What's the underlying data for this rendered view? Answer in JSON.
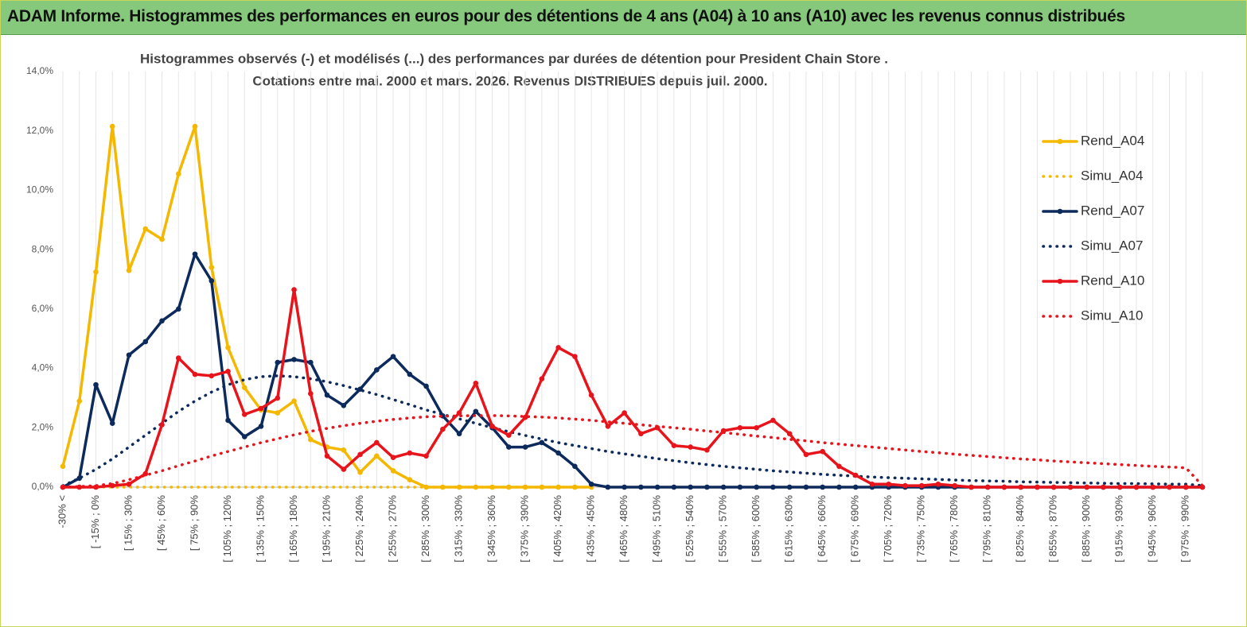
{
  "header": {
    "title": "ADAM Informe. Histogrammes des performances en euros pour des détentions de 4 ans (A04) à 10 ans (A10) avec les revenus connus distribués"
  },
  "chart_data": {
    "type": "line",
    "subtitle": [
      "Histogrammes observés (-) et modélisés (...) des performances par durées de détention pour President Chain Store .",
      "Cotations entre mai. 2000 et mars. 2026. Revenus DISTRIBUES depuis juil. 2000."
    ],
    "categories": [
      "-30% <",
      null,
      "[ -15% ; 0%",
      null,
      "[ 15% ; 30%",
      null,
      "[ 45% ; 60%",
      null,
      "[ 75% ; 90%",
      null,
      "[ 105% ; 120%",
      null,
      "[ 135% ; 150%",
      null,
      "[ 165% ; 180%",
      null,
      "[ 195% ; 210%",
      null,
      "[ 225% ; 240%",
      null,
      "[ 255% ; 270%",
      null,
      "[ 285% ; 300%",
      null,
      "[ 315% ; 330%",
      null,
      "[ 345% ; 360%",
      null,
      "[ 375% ; 390%",
      null,
      "[ 405% ; 420%",
      null,
      "[ 435% ; 450%",
      null,
      "[ 465% ; 480%",
      null,
      "[ 495% ; 510%",
      null,
      "[ 525% ; 540%",
      null,
      "[ 555% ; 570%",
      null,
      "[ 585% ; 600%",
      null,
      "[ 615% ; 630%",
      null,
      "[ 645% ; 660%",
      null,
      "[ 675% ; 690%",
      null,
      "[ 705% ; 720%",
      null,
      "[ 735% ; 750%",
      null,
      "[ 765% ; 780%",
      null,
      "[ 795% ; 810%",
      null,
      "[ 825% ; 840%",
      null,
      "[ 855% ; 870%",
      null,
      "[ 885% ; 900%",
      null,
      "[ 915% ; 930%",
      null,
      "[ 945% ; 960%",
      null,
      "[ 975% ; 990%",
      null
    ],
    "series": [
      {
        "name": "Rend_A04",
        "color": "#f5b800",
        "style": "solid",
        "values": [
          0.7,
          2.9,
          7.25,
          12.15,
          7.3,
          8.7,
          8.35,
          10.55,
          12.15,
          7.4,
          4.7,
          3.35,
          2.6,
          2.5,
          2.9,
          1.6,
          1.35,
          1.25,
          0.5,
          1.05,
          0.55,
          0.25,
          0,
          0,
          0,
          0,
          0,
          0,
          0,
          0,
          0,
          0,
          0,
          null,
          null,
          null,
          null,
          null,
          null,
          null,
          null,
          null,
          null,
          null,
          null,
          null,
          null,
          null,
          null,
          null,
          null,
          null,
          null,
          null,
          null,
          null,
          null,
          null,
          null,
          null,
          null,
          null,
          null,
          null,
          null,
          null,
          null,
          null,
          null,
          null
        ]
      },
      {
        "name": "Simu_A04",
        "color": "#f5b800",
        "style": "dotted",
        "values": [
          0,
          0,
          0,
          0,
          0,
          0,
          0,
          0,
          0,
          0,
          0,
          0,
          0,
          0,
          0,
          0,
          0,
          0,
          0,
          0,
          0,
          0,
          0,
          0,
          0,
          0,
          0,
          0,
          0,
          0,
          0,
          0,
          0,
          null,
          null,
          null,
          null,
          null,
          null,
          null,
          null,
          null,
          null,
          null,
          null,
          null,
          null,
          null,
          null,
          null,
          null,
          null,
          null,
          null,
          null,
          null,
          null,
          null,
          null,
          null,
          null,
          null,
          null,
          null,
          null,
          null,
          null,
          null,
          null,
          null
        ]
      },
      {
        "name": "Rend_A07",
        "color": "#0d2a5c",
        "style": "solid",
        "values": [
          0,
          0.3,
          3.45,
          2.15,
          4.45,
          4.9,
          5.6,
          6.0,
          7.85,
          6.95,
          2.25,
          1.7,
          2.05,
          4.2,
          4.3,
          4.2,
          3.1,
          2.75,
          3.3,
          3.95,
          4.4,
          3.8,
          3.4,
          2.4,
          1.8,
          2.55,
          2.0,
          1.35,
          1.35,
          1.5,
          1.15,
          0.7,
          0.1,
          0,
          0,
          0,
          0,
          0,
          0,
          0,
          0,
          0,
          0,
          0,
          0,
          0,
          0,
          0,
          0,
          0,
          0,
          0,
          0,
          0,
          0,
          0,
          0,
          0,
          0,
          0,
          0,
          0,
          0,
          0,
          0,
          0,
          0,
          0,
          0,
          0
        ]
      },
      {
        "name": "Simu_A07",
        "color": "#0d2a5c",
        "style": "dotted",
        "values": [
          0.05,
          0.3,
          0.6,
          0.95,
          1.35,
          1.75,
          2.15,
          2.55,
          2.9,
          3.2,
          3.45,
          3.62,
          3.72,
          3.75,
          3.72,
          3.65,
          3.55,
          3.42,
          3.27,
          3.12,
          2.95,
          2.78,
          2.6,
          2.45,
          2.3,
          2.15,
          2.0,
          1.87,
          1.74,
          1.62,
          1.5,
          1.4,
          1.3,
          1.2,
          1.12,
          1.04,
          0.96,
          0.89,
          0.82,
          0.76,
          0.7,
          0.65,
          0.6,
          0.55,
          0.51,
          0.47,
          0.43,
          0.4,
          0.37,
          0.34,
          0.32,
          0.3,
          0.28,
          0.26,
          0.24,
          0.22,
          0.21,
          0.2,
          0.18,
          0.17,
          0.16,
          0.15,
          0.14,
          0.13,
          0.12,
          0.12,
          0.11,
          0.1,
          0.1,
          0.05
        ]
      },
      {
        "name": "Rend_A10",
        "color": "#e8141c",
        "style": "solid",
        "values": [
          0,
          0,
          0,
          0.05,
          0.1,
          0.45,
          2.1,
          4.35,
          3.8,
          3.75,
          3.9,
          2.45,
          2.65,
          3.0,
          6.65,
          3.15,
          1.05,
          0.6,
          1.1,
          1.5,
          1.0,
          1.15,
          1.05,
          1.95,
          2.5,
          3.5,
          2.05,
          1.75,
          2.35,
          3.65,
          4.7,
          4.4,
          3.1,
          2.05,
          2.5,
          1.8,
          2.0,
          1.4,
          1.35,
          1.25,
          1.9,
          2.0,
          2.0,
          2.25,
          1.8,
          1.1,
          1.2,
          0.7,
          0.4,
          0.1,
          0.1,
          0.05,
          0.05,
          0.1,
          0.05,
          0,
          0,
          0,
          0,
          0,
          0,
          0,
          0,
          0,
          0,
          0,
          0,
          0,
          0,
          0
        ]
      },
      {
        "name": "Simu_A10",
        "color": "#e8141c",
        "style": "dotted",
        "values": [
          0,
          0.02,
          0.05,
          0.12,
          0.25,
          0.4,
          0.55,
          0.72,
          0.88,
          1.05,
          1.2,
          1.35,
          1.5,
          1.63,
          1.76,
          1.88,
          1.98,
          2.07,
          2.15,
          2.22,
          2.28,
          2.33,
          2.37,
          2.39,
          2.4,
          2.41,
          2.41,
          2.4,
          2.38,
          2.36,
          2.33,
          2.29,
          2.25,
          2.2,
          2.15,
          2.1,
          2.05,
          2.0,
          1.95,
          1.89,
          1.84,
          1.78,
          1.72,
          1.67,
          1.61,
          1.56,
          1.5,
          1.45,
          1.4,
          1.35,
          1.3,
          1.25,
          1.2,
          1.16,
          1.11,
          1.07,
          1.03,
          0.99,
          0.95,
          0.92,
          0.88,
          0.85,
          0.82,
          0.79,
          0.76,
          0.73,
          0.7,
          0.68,
          0.65,
          0.05
        ]
      }
    ],
    "ylim": [
      0,
      14
    ],
    "yticks": [
      {
        "value": 0,
        "label": "0,0%"
      },
      {
        "value": 2,
        "label": "2,0%"
      },
      {
        "value": 4,
        "label": "4,0%"
      },
      {
        "value": 6,
        "label": "6,0%"
      },
      {
        "value": 8,
        "label": "8,0%"
      },
      {
        "value": 10,
        "label": "10,0%"
      },
      {
        "value": 12,
        "label": "12,0%"
      },
      {
        "value": 14,
        "label": "14,0%"
      }
    ],
    "grid": "x",
    "legend": "right"
  }
}
